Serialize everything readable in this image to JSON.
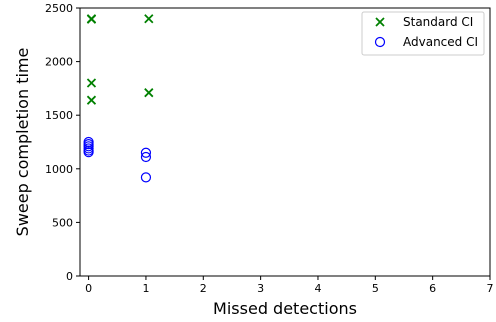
{
  "chart_data": {
    "type": "scatter",
    "title": "",
    "xlabel": "Missed detections",
    "ylabel": "Sweep completion time",
    "xlim": [
      -0.15,
      7
    ],
    "ylim": [
      0,
      2500
    ],
    "xticks": [
      0,
      1,
      2,
      3,
      4,
      5,
      6,
      7
    ],
    "yticks": [
      0,
      500,
      1000,
      1500,
      2000,
      2500
    ],
    "grid": false,
    "legend_position": "top-right",
    "series": [
      {
        "name": "Standard CI",
        "marker": "x",
        "color": "#008000",
        "points": [
          {
            "x": 0.05,
            "y": 2400
          },
          {
            "x": 0.05,
            "y": 2395
          },
          {
            "x": 0.05,
            "y": 1800
          },
          {
            "x": 0.05,
            "y": 1640
          },
          {
            "x": 1.05,
            "y": 2400
          },
          {
            "x": 1.05,
            "y": 1710
          }
        ]
      },
      {
        "name": "Advanced CI",
        "marker": "circle",
        "color": "#0000ff",
        "points": [
          {
            "x": 0.0,
            "y": 1250
          },
          {
            "x": 0.0,
            "y": 1230
          },
          {
            "x": 0.0,
            "y": 1210
          },
          {
            "x": 0.0,
            "y": 1190
          },
          {
            "x": 0.0,
            "y": 1170
          },
          {
            "x": 0.0,
            "y": 1155
          },
          {
            "x": 1.0,
            "y": 1150
          },
          {
            "x": 1.0,
            "y": 1110
          },
          {
            "x": 1.0,
            "y": 920
          }
        ]
      }
    ]
  }
}
